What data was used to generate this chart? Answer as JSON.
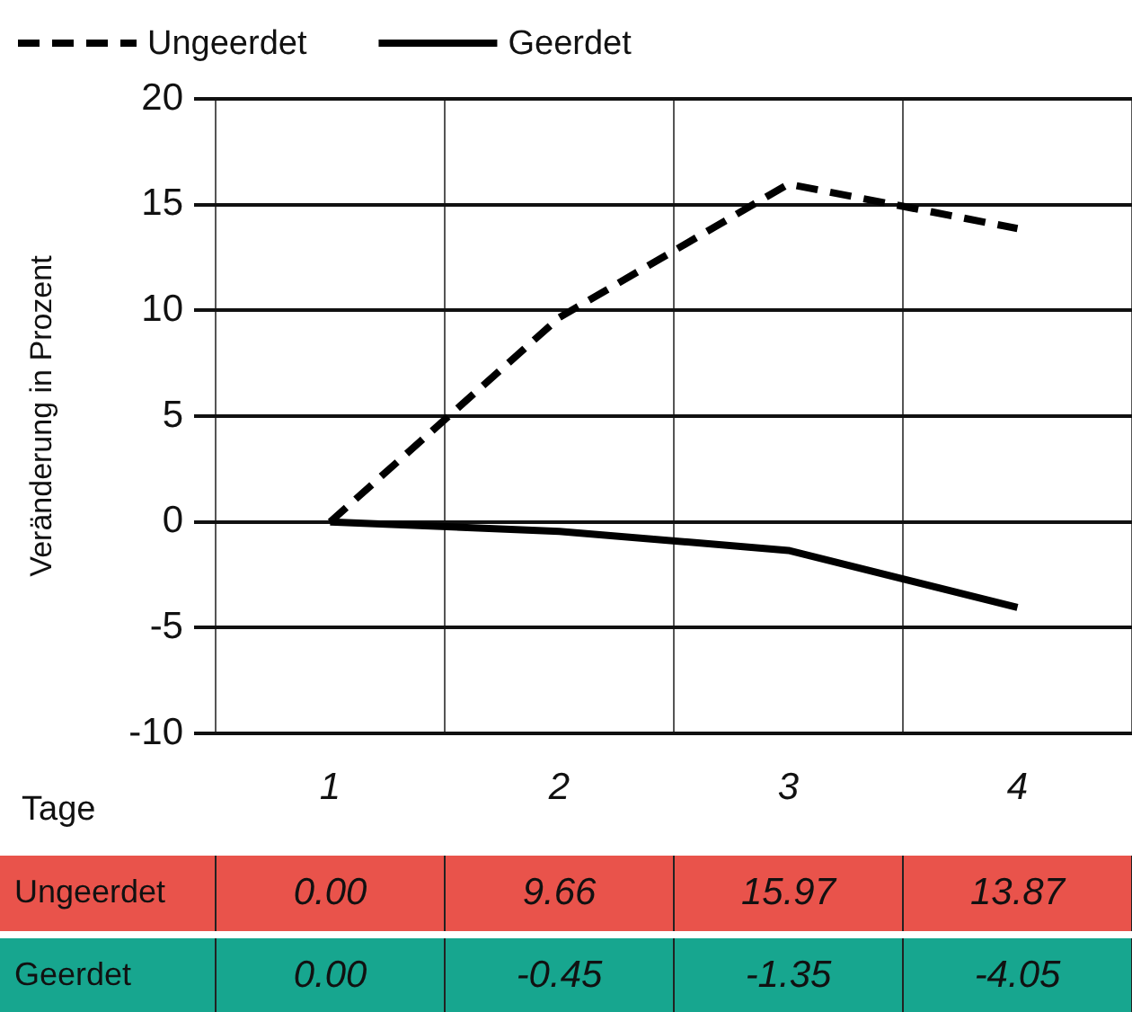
{
  "chart_data": {
    "type": "line",
    "xlabel": "Tage",
    "ylabel": "Veränderung in Prozent",
    "categories": [
      "1",
      "2",
      "3",
      "4"
    ],
    "series": [
      {
        "name": "Ungeerdet",
        "color": "#000000",
        "line_style": "dashed",
        "values": [
          0.0,
          9.66,
          15.97,
          13.87
        ],
        "value_labels": [
          "0.00",
          "9.66",
          "15.97",
          "13.87"
        ]
      },
      {
        "name": "Geerdet",
        "color": "#000000",
        "line_style": "solid",
        "values": [
          0.0,
          -0.45,
          -1.35,
          -4.05
        ],
        "value_labels": [
          "0.00",
          "-0.45",
          "-1.35",
          "-4.05"
        ]
      }
    ],
    "ylim": [
      -10,
      20
    ],
    "yticks": [
      -10,
      -5,
      0,
      5,
      10,
      15,
      20
    ],
    "grid": true,
    "legend": "top left",
    "marker": "none"
  }
}
